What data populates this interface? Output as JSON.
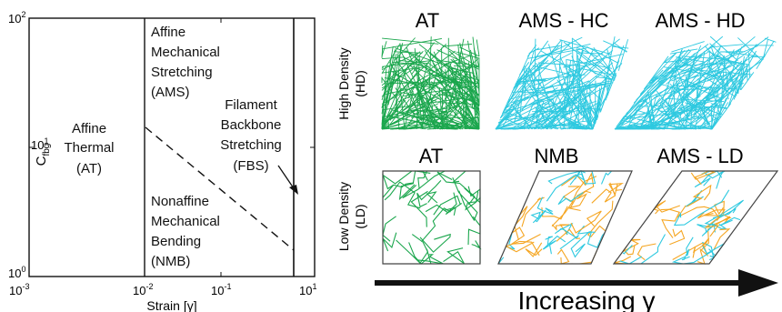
{
  "phase_diagram": {
    "y_axis_label_base": "C",
    "y_axis_label_sub": "fbg",
    "x_axis_label": "Strain [γ]",
    "y_ticks": [
      {
        "base": "10",
        "exp": "2"
      },
      {
        "base": "10",
        "exp": "1"
      },
      {
        "base": "10",
        "exp": "0"
      }
    ],
    "x_ticks": [
      {
        "base": "10",
        "exp": "-3"
      },
      {
        "base": "10",
        "exp": "-2"
      },
      {
        "base": "10",
        "exp": "-1"
      },
      {
        "base": "10",
        "exp": "1"
      }
    ],
    "regions": {
      "at": [
        "Affine",
        "Thermal",
        "(AT)"
      ],
      "ams": [
        "Affine",
        "Mechanical",
        "Stretching",
        "(AMS)"
      ],
      "fbs": [
        "Filament",
        "Backbone",
        "Stretching",
        "(FBS)"
      ],
      "nmb": [
        "Nonaffine",
        "Mechanical",
        "Bending",
        "(NMB)"
      ]
    }
  },
  "network_panels": {
    "high_density_label": [
      "High Density",
      "(HD)"
    ],
    "low_density_label": [
      "Low Density",
      "(LD)"
    ],
    "top_titles": [
      "AT",
      "AMS - HC",
      "AMS - HD"
    ],
    "bottom_titles": [
      "AT",
      "NMB",
      "AMS - LD"
    ],
    "arrow_label": "Increasing γ",
    "colors": {
      "green": "#1aa64c",
      "cyan": "#2ec9e0",
      "orange": "#f5a623",
      "outline": "#444444"
    }
  }
}
